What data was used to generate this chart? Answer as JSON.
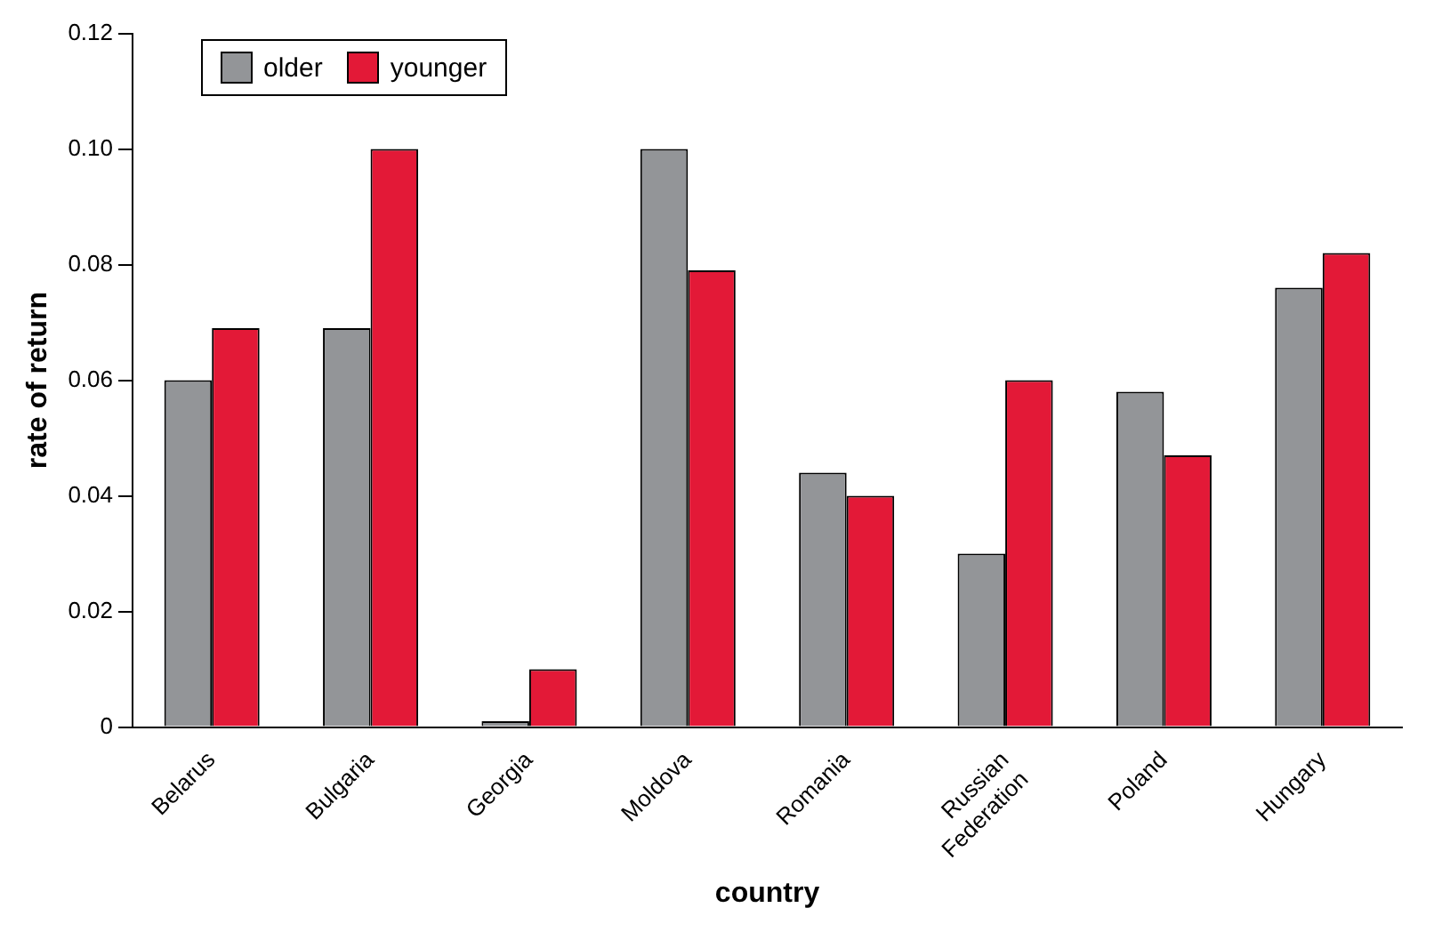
{
  "chart_data": {
    "type": "bar",
    "xlabel": "country",
    "ylabel": "rate of return",
    "categories": [
      "Belarus",
      "Bulgaria",
      "Georgia",
      "Moldova",
      "Romania",
      "Russian Federation",
      "Poland",
      "Hungary"
    ],
    "series": [
      {
        "name": "older",
        "color": "#939598",
        "values": [
          0.06,
          0.069,
          0.001,
          0.1,
          0.044,
          0.03,
          0.058,
          0.076
        ]
      },
      {
        "name": "younger",
        "color": "#e31937",
        "values": [
          0.069,
          0.1,
          0.01,
          0.079,
          0.04,
          0.06,
          0.047,
          0.082
        ]
      }
    ],
    "ylim": [
      0,
      0.12
    ],
    "yticks": [
      0,
      0.02,
      0.04,
      0.06,
      0.08,
      {
        "value": 0.1,
        "label": "0.10"
      },
      0.12
    ],
    "grid": false,
    "legend": "top left"
  }
}
